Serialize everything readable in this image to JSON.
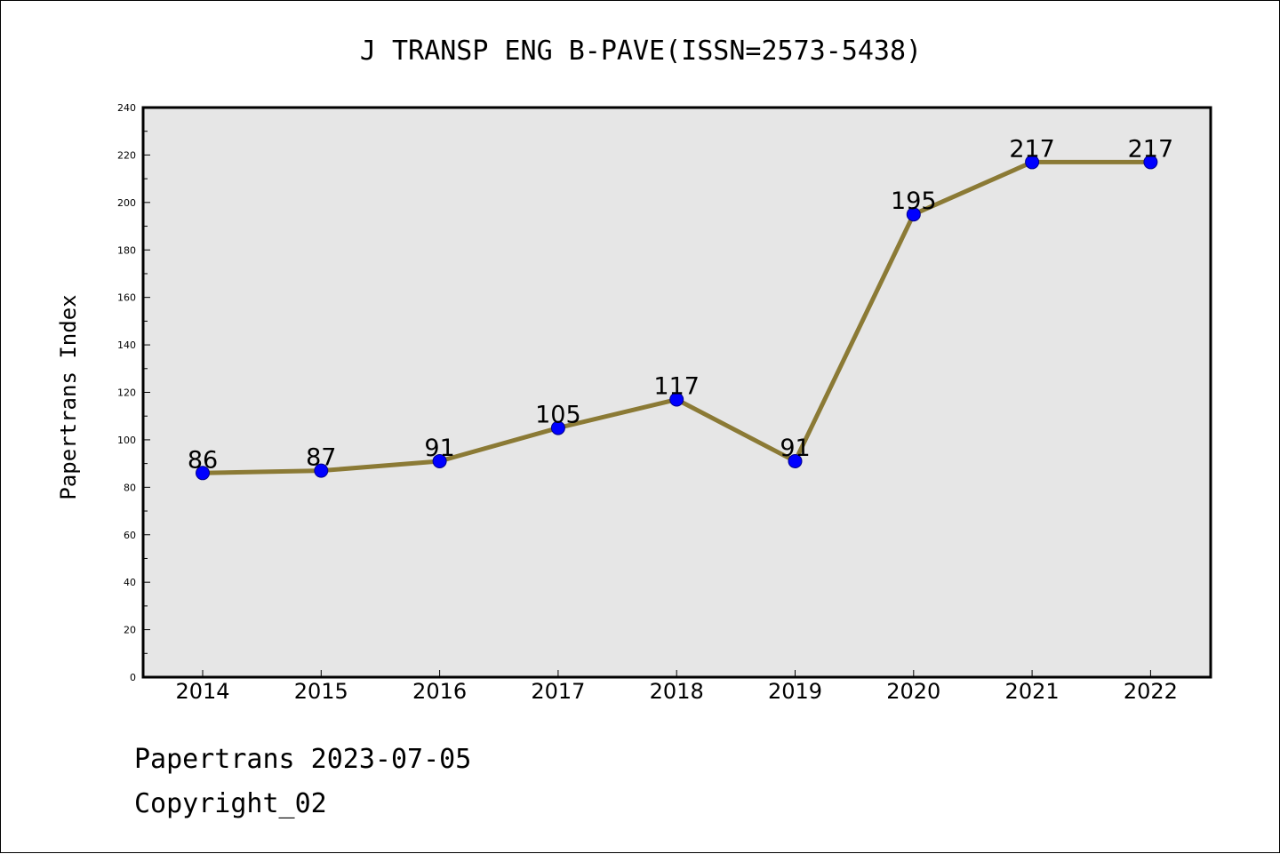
{
  "chart_data": {
    "type": "line",
    "title": "J TRANSP ENG B-PAVE(ISSN=2573-5438)",
    "xlabel": "",
    "ylabel": "Papertrans Index",
    "categories": [
      "2014",
      "2015",
      "2016",
      "2017",
      "2018",
      "2019",
      "2020",
      "2021",
      "2022"
    ],
    "series": [
      {
        "values": [
          86,
          87,
          91,
          105,
          117,
          91,
          195,
          217,
          217
        ]
      }
    ],
    "ylim": [
      0,
      240
    ],
    "yticks": [
      0,
      20,
      40,
      60,
      80,
      100,
      120,
      140,
      160,
      180,
      200,
      220,
      240
    ],
    "grid": false,
    "data_labels": true,
    "colors": {
      "line": "#8b7a35",
      "marker": "#0000ff",
      "plot_background": "#e6e6e6"
    }
  },
  "footer": {
    "line1": "Papertrans 2023-07-05",
    "line2": "Copyright_02"
  }
}
